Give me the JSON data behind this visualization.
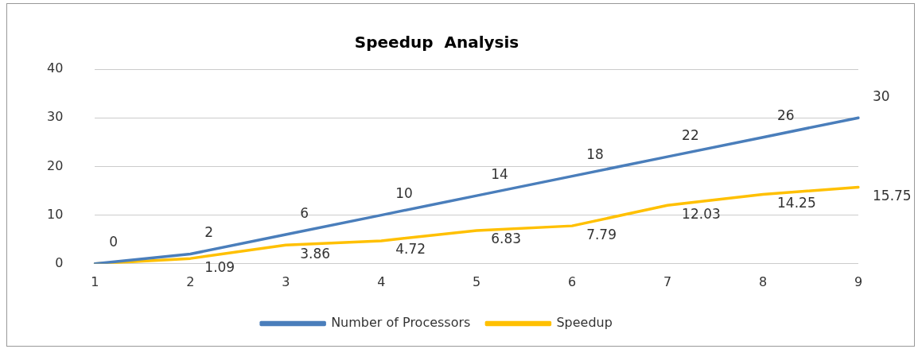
{
  "chart_data": {
    "type": "line",
    "title": "Speedup  Analysis",
    "categories": [
      "1",
      "2",
      "3",
      "4",
      "5",
      "6",
      "7",
      "8",
      "9"
    ],
    "series": [
      {
        "name": "Number of Processors",
        "color": "#4a7ebb",
        "values": [
          0,
          2,
          6,
          10,
          14,
          18,
          22,
          26,
          30
        ]
      },
      {
        "name": "Speedup",
        "color": "#ffc000",
        "values": [
          0,
          1.09,
          3.86,
          4.72,
          6.83,
          7.79,
          12.03,
          14.25,
          15.75
        ],
        "value_labels": [
          null,
          "1.09",
          "3.86",
          "4.72",
          "6.83",
          "7.79",
          "12.03",
          "14.25",
          "15.75"
        ]
      }
    ],
    "ylim": [
      0,
      40
    ],
    "yticks": [
      0,
      10,
      20,
      30,
      40
    ],
    "grid": "y",
    "legend": "bottom",
    "marker": "none",
    "line_style": "solid",
    "data_labels": true
  }
}
